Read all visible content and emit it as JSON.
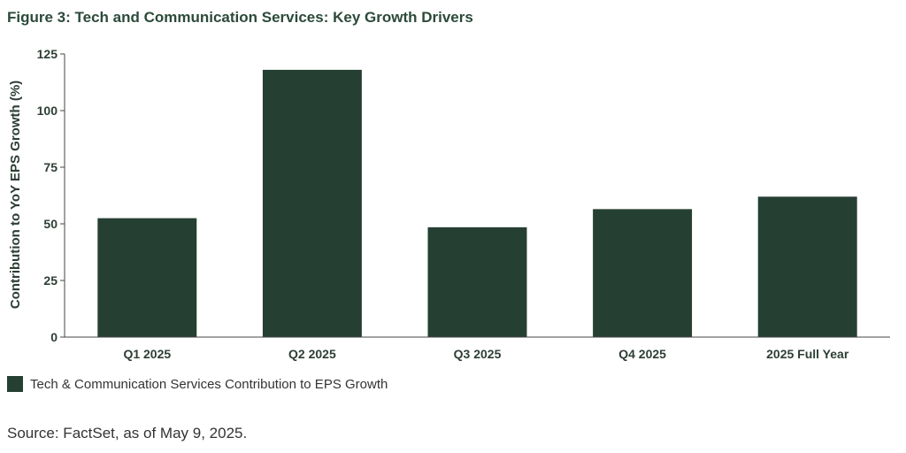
{
  "title": "Figure 3: Tech and Communication Services: Key Growth Drivers",
  "source": "Source: FactSet, as of May 9, 2025.",
  "colors": {
    "bar": "#263f33",
    "axis": "#444444"
  },
  "chart_data": {
    "type": "bar",
    "title": "Figure 3: Tech and Communication Services: Key Growth Drivers",
    "categories": [
      "Q1 2025",
      "Q2 2025",
      "Q3 2025",
      "Q4 2025",
      "2025 Full Year"
    ],
    "series": [
      {
        "name": "Tech & Communication Services Contribution to EPS Growth",
        "values": [
          52.5,
          118,
          48.5,
          56.5,
          62
        ]
      }
    ],
    "xlabel": "",
    "ylabel": "Contribution to YoY EPS Growth (%)",
    "ylim": [
      0,
      125
    ],
    "yticks": [
      0,
      25,
      50,
      75,
      100,
      125
    ],
    "grid": false,
    "legend": "bottom-left"
  }
}
